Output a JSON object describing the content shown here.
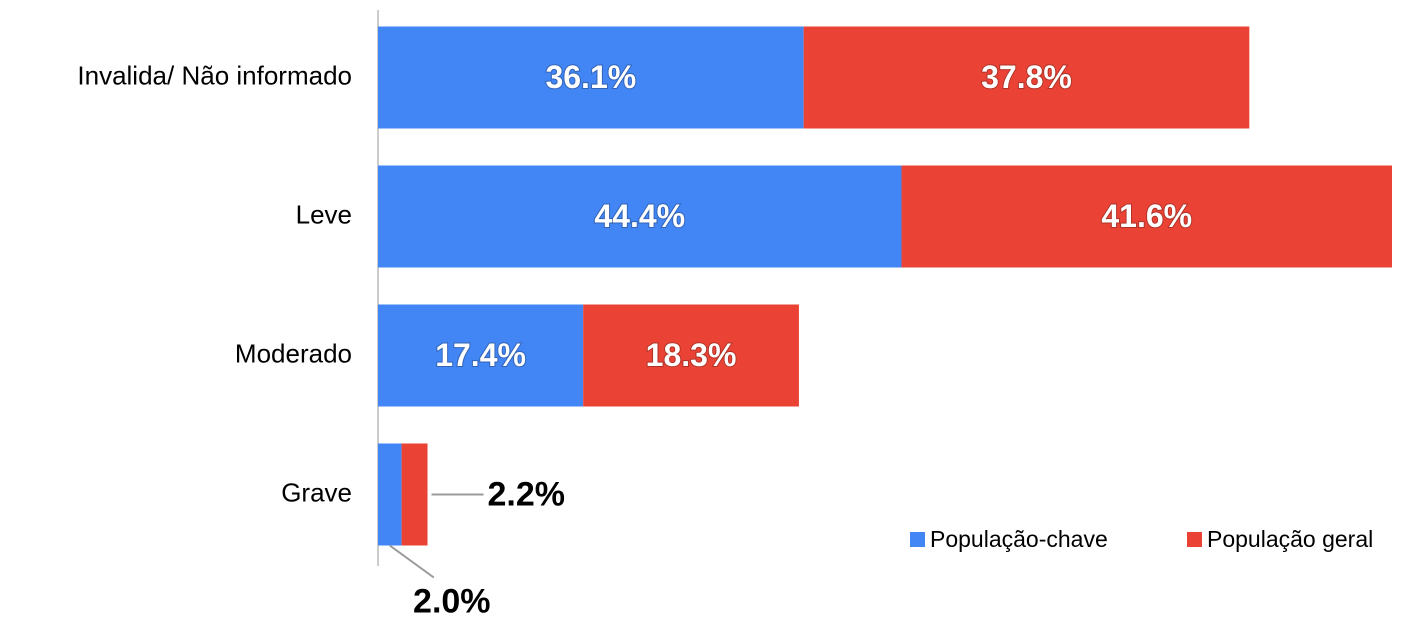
{
  "chart_data": {
    "type": "stacked_barh",
    "categories": [
      "Invalida/ Não informado",
      "Leve",
      "Moderado",
      "Grave"
    ],
    "series": [
      {
        "name": "População-chave",
        "color": "#4285f4",
        "values": [
          36.1,
          44.4,
          17.4,
          2.0
        ],
        "value_labels": [
          "36.1%",
          "44.4%",
          "17.4%",
          "2.0%"
        ]
      },
      {
        "name": "População geral",
        "color": "#ea4335",
        "values": [
          37.8,
          41.6,
          18.3,
          2.2
        ],
        "value_labels": [
          "37.8%",
          "41.6%",
          "18.3%",
          "2.2%"
        ]
      }
    ],
    "xlim": [
      0,
      86
    ],
    "legend": "bottom-right"
  }
}
